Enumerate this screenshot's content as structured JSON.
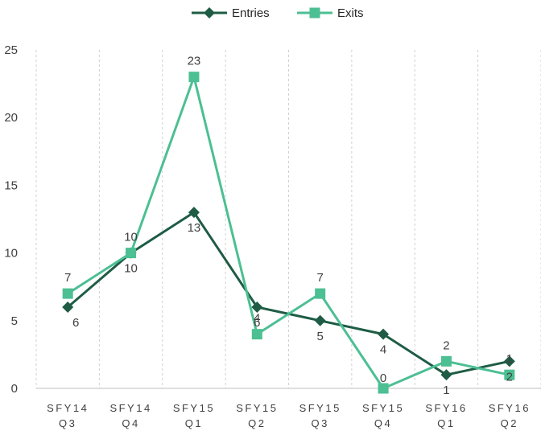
{
  "chart_data": {
    "type": "line",
    "categories": [
      [
        "SFY14",
        "Q3"
      ],
      [
        "SFY14",
        "Q4"
      ],
      [
        "SFY15",
        "Q1"
      ],
      [
        "SFY15",
        "Q2"
      ],
      [
        "SFY15",
        "Q3"
      ],
      [
        "SFY15",
        "Q4"
      ],
      [
        "SFY16",
        "Q1"
      ],
      [
        "SFY16",
        "Q2"
      ]
    ],
    "series": [
      {
        "name": "Entries",
        "values": [
          6,
          10,
          13,
          6,
          5,
          4,
          1,
          2
        ],
        "color": "#1e5c45",
        "marker": "diamond"
      },
      {
        "name": "Exits",
        "values": [
          7,
          10,
          23,
          4,
          7,
          0,
          2,
          1
        ],
        "color": "#4cbf93",
        "marker": "square"
      }
    ],
    "ylim": [
      0,
      25
    ],
    "yticks": [
      0,
      5,
      10,
      15,
      20,
      25
    ],
    "grid": "vertical-dashed",
    "legend": "top-center"
  }
}
